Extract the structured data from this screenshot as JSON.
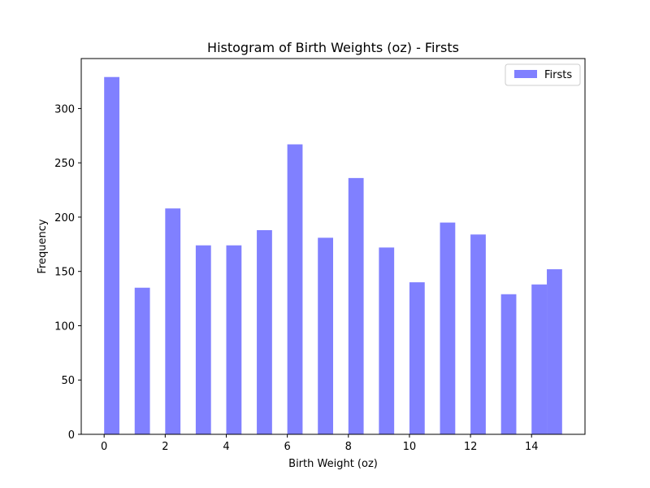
{
  "chart_data": {
    "type": "bar",
    "title": "Histogram of Birth Weights (oz) - Firsts",
    "xlabel": "Birth Weight (oz)",
    "ylabel": "Frequency",
    "xlim": [
      -0.75,
      15.75
    ],
    "ylim": [
      0,
      346
    ],
    "xticks": [
      0,
      2,
      4,
      6,
      8,
      10,
      12,
      14
    ],
    "yticks": [
      0,
      50,
      100,
      150,
      200,
      250,
      300
    ],
    "bar_width": 0.5,
    "series": [
      {
        "name": "Firsts",
        "color": "#8080ff",
        "bars": [
          {
            "x": 0.25,
            "value": 329
          },
          {
            "x": 1.25,
            "value": 135
          },
          {
            "x": 2.25,
            "value": 208
          },
          {
            "x": 3.25,
            "value": 174
          },
          {
            "x": 4.25,
            "value": 174
          },
          {
            "x": 5.25,
            "value": 188
          },
          {
            "x": 6.25,
            "value": 267
          },
          {
            "x": 7.25,
            "value": 181
          },
          {
            "x": 8.25,
            "value": 236
          },
          {
            "x": 9.25,
            "value": 172
          },
          {
            "x": 10.25,
            "value": 140
          },
          {
            "x": 11.25,
            "value": 195
          },
          {
            "x": 12.25,
            "value": 184
          },
          {
            "x": 13.25,
            "value": 129
          },
          {
            "x": 14.25,
            "value": 138
          },
          {
            "x": 14.75,
            "value": 152
          }
        ]
      }
    ],
    "legend": {
      "position": "upper-right",
      "entries": [
        "Firsts"
      ]
    },
    "grid": false
  }
}
